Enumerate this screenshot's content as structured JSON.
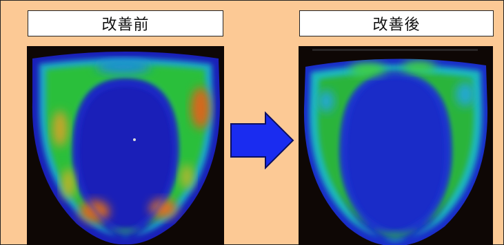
{
  "panels": {
    "before": {
      "label": "改善前"
    },
    "after": {
      "label": "改善後"
    }
  },
  "arrow": {
    "direction": "right",
    "color": "#1a2cf0"
  },
  "colors": {
    "background": "#fcc995",
    "photo_background": "#0e0705",
    "heat_low": "#1a22c8",
    "heat_mid": "#2ab83a",
    "heat_high": "#d85a20"
  }
}
